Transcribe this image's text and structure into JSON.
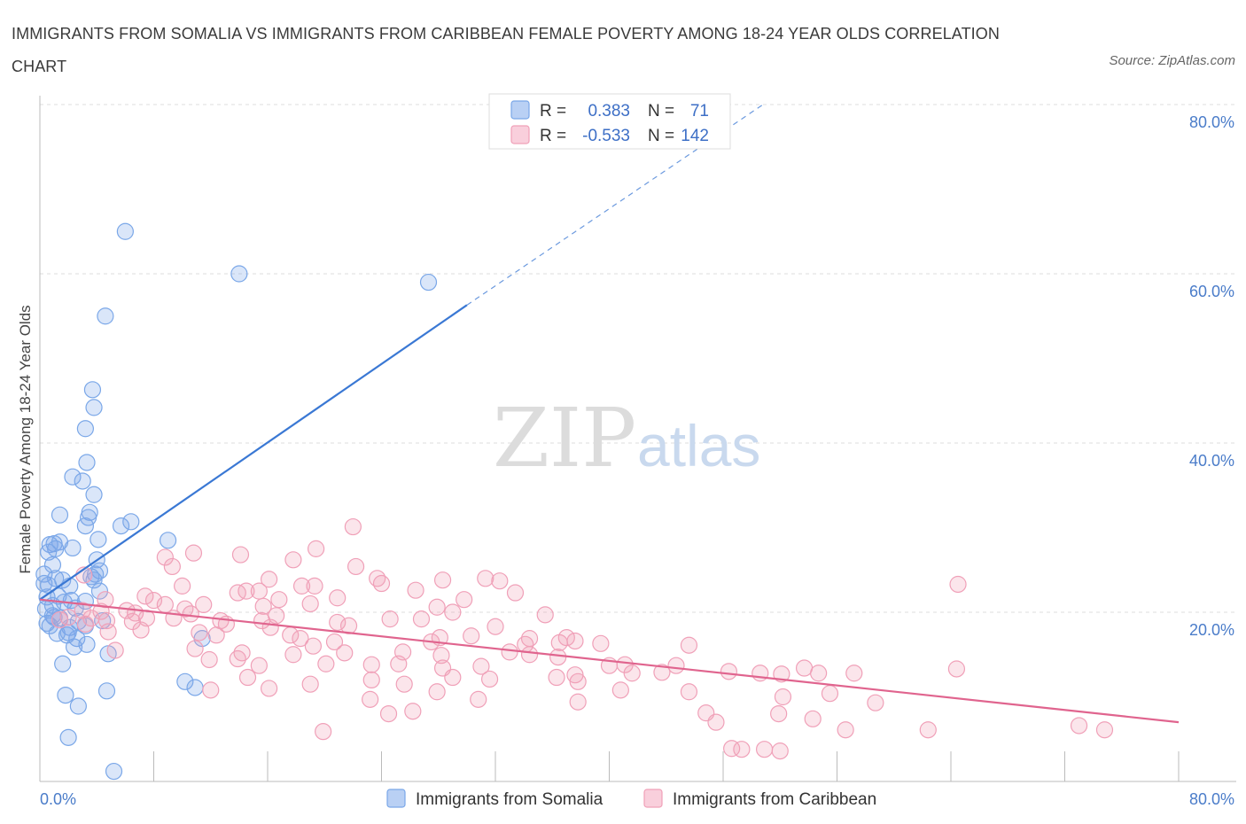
{
  "title": "IMMIGRANTS FROM SOMALIA VS IMMIGRANTS FROM CARIBBEAN FEMALE POVERTY AMONG 18-24 YEAR OLDS CORRELATION CHART",
  "source": "Source: ZipAtlas.com",
  "watermark": {
    "zip": "ZIP",
    "atlas": "atlas"
  },
  "legend_top": {
    "rows": [
      {
        "r_label": "R =",
        "r_value": "0.383",
        "n_label": "N =",
        "n_value": "71",
        "color": "#7aa7e8"
      },
      {
        "r_label": "R =",
        "r_value": "-0.533",
        "n_label": "N =",
        "n_value": "142",
        "color": "#f0a0b8"
      }
    ]
  },
  "legend_bottom": {
    "items": [
      {
        "label": "Immigrants from Somalia",
        "color": "#7aa7e8"
      },
      {
        "label": "Immigrants from Caribbean",
        "color": "#f0a0b8"
      }
    ]
  },
  "chart_data": {
    "type": "scatter",
    "title": "IMMIGRANTS FROM SOMALIA VS IMMIGRANTS FROM CARIBBEAN FEMALE POVERTY AMONG 18-24 YEAR OLDS CORRELATION CHART",
    "xlabel": "",
    "ylabel": "Female Poverty Among 18-24 Year Olds",
    "xlim": [
      0,
      80
    ],
    "ylim": [
      0,
      80
    ],
    "x_tick_labels": [
      "0.0%",
      "80.0%"
    ],
    "y_tick_labels": [
      "20.0%",
      "40.0%",
      "60.0%",
      "80.0%"
    ],
    "y_ticks": [
      20,
      40,
      60,
      80
    ],
    "grid": true,
    "legend": "top-center",
    "series": [
      {
        "name": "Immigrants from Somalia",
        "color": "#7aa7e8",
        "line_color": "#3a78d4",
        "R": 0.383,
        "N": 71,
        "trend": {
          "x0": 0,
          "y0": 21.5,
          "x1": 30,
          "y1": 56.3,
          "dash_x1": 50.8,
          "dash_y1": 80
        },
        "points": [
          [
            6.0,
            65.0
          ],
          [
            14.0,
            60.0
          ],
          [
            27.3,
            59.0
          ],
          [
            4.6,
            55.0
          ],
          [
            3.7,
            46.3
          ],
          [
            3.8,
            44.2
          ],
          [
            3.2,
            41.7
          ],
          [
            3.3,
            37.7
          ],
          [
            2.3,
            36.0
          ],
          [
            3.0,
            35.5
          ],
          [
            3.8,
            33.9
          ],
          [
            1.4,
            31.5
          ],
          [
            3.5,
            31.8
          ],
          [
            3.4,
            31.2
          ],
          [
            6.4,
            30.7
          ],
          [
            3.2,
            30.2
          ],
          [
            5.7,
            30.2
          ],
          [
            9.0,
            28.5
          ],
          [
            4.1,
            28.6
          ],
          [
            1.0,
            28.1
          ],
          [
            0.7,
            28.0
          ],
          [
            1.4,
            28.3
          ],
          [
            1.1,
            27.5
          ],
          [
            2.3,
            27.6
          ],
          [
            0.6,
            27.1
          ],
          [
            0.9,
            25.6
          ],
          [
            4.0,
            26.2
          ],
          [
            4.2,
            24.9
          ],
          [
            3.9,
            24.5
          ],
          [
            3.6,
            24.2
          ],
          [
            0.3,
            24.5
          ],
          [
            0.3,
            23.4
          ],
          [
            1.1,
            24.0
          ],
          [
            1.6,
            23.8
          ],
          [
            2.1,
            23.1
          ],
          [
            0.6,
            23.2
          ],
          [
            3.8,
            23.8
          ],
          [
            4.2,
            22.5
          ],
          [
            0.5,
            21.8
          ],
          [
            1.3,
            21.9
          ],
          [
            1.7,
            21.2
          ],
          [
            0.9,
            20.8
          ],
          [
            2.2,
            21.4
          ],
          [
            3.2,
            21.3
          ],
          [
            2.5,
            20.5
          ],
          [
            0.4,
            20.4
          ],
          [
            1.0,
            19.4
          ],
          [
            1.4,
            19.3
          ],
          [
            0.9,
            19.6
          ],
          [
            2.7,
            18.9
          ],
          [
            3.2,
            18.4
          ],
          [
            0.7,
            18.4
          ],
          [
            2.1,
            18.2
          ],
          [
            4.4,
            19.0
          ],
          [
            0.5,
            18.7
          ],
          [
            1.2,
            17.5
          ],
          [
            1.9,
            17.3
          ],
          [
            2.6,
            16.9
          ],
          [
            2.0,
            17.6
          ],
          [
            11.4,
            16.9
          ],
          [
            2.4,
            15.9
          ],
          [
            4.8,
            15.1
          ],
          [
            1.6,
            13.9
          ],
          [
            10.2,
            11.8
          ],
          [
            10.9,
            11.1
          ],
          [
            4.7,
            10.7
          ],
          [
            1.8,
            10.2
          ],
          [
            2.7,
            8.9
          ],
          [
            2.0,
            5.2
          ],
          [
            5.2,
            1.2
          ],
          [
            3.3,
            16.2
          ]
        ]
      },
      {
        "name": "Immigrants from Caribbean",
        "color": "#f0a0b8",
        "line_color": "#e0648e",
        "R": -0.533,
        "N": 142,
        "trend": {
          "x0": 0,
          "y0": 21.5,
          "x1": 80,
          "y1": 7.0
        },
        "points": [
          [
            22.0,
            30.1
          ],
          [
            19.4,
            27.5
          ],
          [
            10.8,
            27.0
          ],
          [
            14.1,
            26.8
          ],
          [
            17.8,
            26.2
          ],
          [
            8.8,
            26.5
          ],
          [
            22.2,
            25.4
          ],
          [
            9.3,
            25.4
          ],
          [
            3.1,
            24.4
          ],
          [
            23.7,
            24.0
          ],
          [
            31.3,
            24.0
          ],
          [
            28.3,
            23.8
          ],
          [
            32.3,
            23.7
          ],
          [
            16.1,
            23.9
          ],
          [
            24.0,
            23.4
          ],
          [
            10.0,
            23.1
          ],
          [
            19.3,
            23.1
          ],
          [
            26.4,
            22.6
          ],
          [
            18.4,
            23.1
          ],
          [
            14.5,
            22.5
          ],
          [
            15.4,
            22.5
          ],
          [
            33.4,
            22.3
          ],
          [
            13.9,
            22.3
          ],
          [
            20.9,
            21.7
          ],
          [
            7.4,
            21.9
          ],
          [
            16.8,
            21.5
          ],
          [
            8.0,
            21.4
          ],
          [
            4.6,
            21.5
          ],
          [
            29.8,
            21.5
          ],
          [
            19.0,
            21.0
          ],
          [
            8.8,
            20.9
          ],
          [
            11.5,
            20.9
          ],
          [
            15.7,
            20.7
          ],
          [
            27.9,
            20.6
          ],
          [
            10.2,
            20.4
          ],
          [
            6.1,
            20.2
          ],
          [
            3.0,
            20.2
          ],
          [
            4.3,
            20.1
          ],
          [
            29.0,
            20.0
          ],
          [
            6.7,
            19.9
          ],
          [
            10.6,
            19.8
          ],
          [
            16.6,
            19.6
          ],
          [
            35.5,
            19.7
          ],
          [
            7.5,
            19.3
          ],
          [
            9.4,
            19.3
          ],
          [
            2.0,
            19.4
          ],
          [
            3.6,
            19.3
          ],
          [
            26.8,
            19.2
          ],
          [
            24.6,
            19.2
          ],
          [
            15.6,
            19.0
          ],
          [
            12.7,
            19.0
          ],
          [
            4.7,
            19.0
          ],
          [
            1.4,
            19.1
          ],
          [
            20.9,
            18.8
          ],
          [
            6.5,
            18.9
          ],
          [
            13.1,
            18.6
          ],
          [
            3.2,
            18.6
          ],
          [
            21.7,
            18.4
          ],
          [
            16.2,
            18.2
          ],
          [
            32.0,
            18.3
          ],
          [
            7.1,
            17.9
          ],
          [
            4.8,
            17.7
          ],
          [
            11.2,
            17.6
          ],
          [
            17.6,
            17.3
          ],
          [
            12.4,
            17.3
          ],
          [
            30.3,
            17.2
          ],
          [
            28.1,
            17.0
          ],
          [
            37.0,
            17.0
          ],
          [
            34.4,
            16.9
          ],
          [
            37.6,
            16.6
          ],
          [
            18.3,
            16.9
          ],
          [
            20.7,
            16.5
          ],
          [
            27.5,
            16.5
          ],
          [
            39.4,
            16.3
          ],
          [
            36.5,
            16.4
          ],
          [
            34.1,
            16.2
          ],
          [
            19.2,
            16.0
          ],
          [
            10.9,
            15.7
          ],
          [
            45.6,
            16.1
          ],
          [
            5.3,
            15.5
          ],
          [
            14.2,
            15.2
          ],
          [
            21.4,
            15.2
          ],
          [
            33.0,
            15.3
          ],
          [
            25.5,
            15.3
          ],
          [
            17.8,
            15.0
          ],
          [
            34.4,
            15.0
          ],
          [
            28.2,
            14.9
          ],
          [
            36.4,
            14.7
          ],
          [
            13.9,
            14.5
          ],
          [
            11.9,
            14.4
          ],
          [
            20.1,
            13.9
          ],
          [
            25.2,
            13.9
          ],
          [
            23.3,
            13.8
          ],
          [
            41.1,
            13.8
          ],
          [
            40.0,
            13.7
          ],
          [
            44.7,
            13.7
          ],
          [
            31.0,
            13.6
          ],
          [
            15.4,
            13.7
          ],
          [
            28.3,
            13.4
          ],
          [
            53.7,
            13.4
          ],
          [
            64.4,
            13.3
          ],
          [
            48.4,
            13.0
          ],
          [
            43.7,
            12.9
          ],
          [
            50.6,
            12.8
          ],
          [
            57.2,
            12.8
          ],
          [
            54.7,
            12.8
          ],
          [
            52.1,
            12.7
          ],
          [
            41.6,
            12.8
          ],
          [
            37.6,
            12.6
          ],
          [
            36.3,
            12.3
          ],
          [
            31.6,
            12.1
          ],
          [
            23.3,
            12.0
          ],
          [
            29.0,
            12.3
          ],
          [
            37.8,
            11.8
          ],
          [
            14.6,
            12.3
          ],
          [
            19.0,
            11.5
          ],
          [
            25.6,
            11.5
          ],
          [
            16.1,
            11.0
          ],
          [
            40.8,
            10.8
          ],
          [
            27.9,
            10.6
          ],
          [
            45.6,
            10.6
          ],
          [
            12.0,
            10.8
          ],
          [
            55.5,
            10.4
          ],
          [
            52.2,
            10.0
          ],
          [
            30.8,
            9.7
          ],
          [
            23.2,
            9.7
          ],
          [
            37.8,
            9.4
          ],
          [
            58.7,
            9.3
          ],
          [
            26.2,
            8.3
          ],
          [
            24.5,
            8.0
          ],
          [
            46.8,
            8.1
          ],
          [
            51.9,
            8.0
          ],
          [
            47.5,
            7.0
          ],
          [
            73.0,
            6.6
          ],
          [
            54.3,
            7.4
          ],
          [
            56.6,
            6.1
          ],
          [
            62.4,
            6.1
          ],
          [
            74.8,
            6.1
          ],
          [
            19.9,
            5.9
          ],
          [
            48.6,
            3.9
          ],
          [
            50.9,
            3.8
          ],
          [
            49.3,
            3.8
          ],
          [
            52.0,
            3.6
          ],
          [
            64.5,
            23.3
          ]
        ]
      }
    ]
  }
}
